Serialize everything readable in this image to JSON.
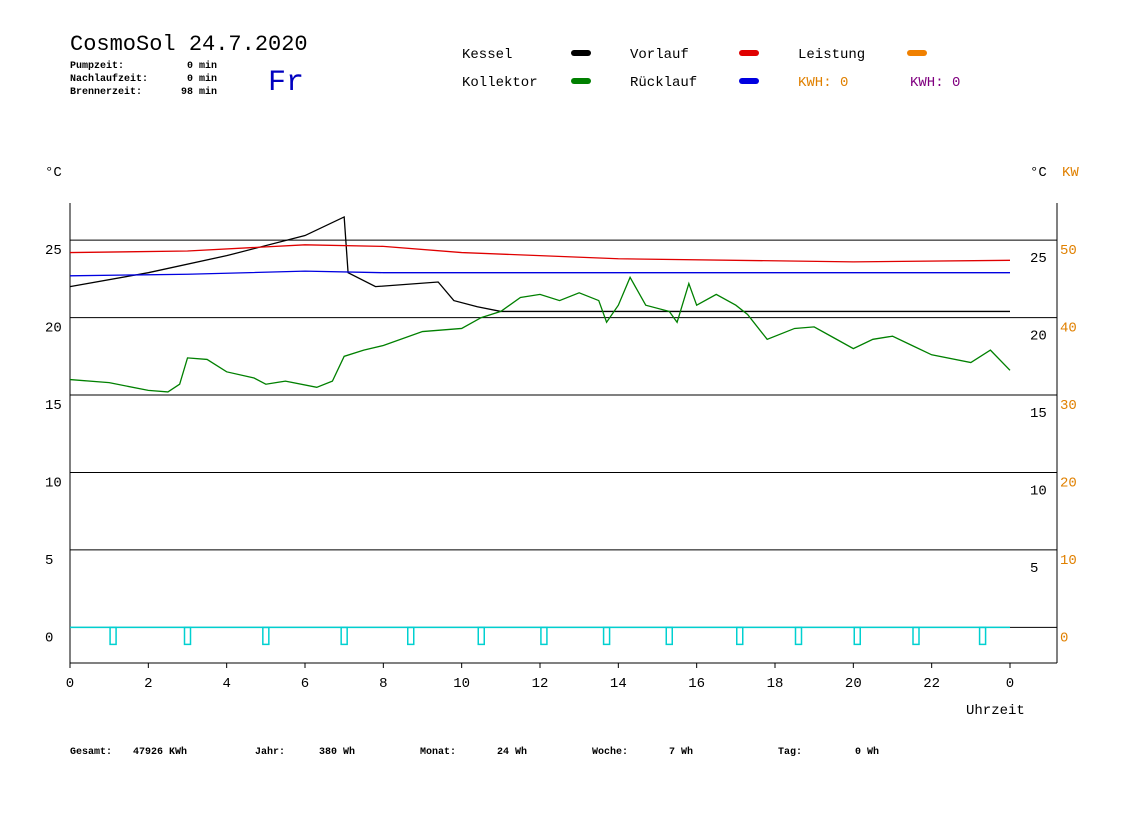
{
  "header": {
    "title": "CosmoSol 24.7.2020",
    "day": "Fr",
    "info": [
      {
        "label": "Pumpzeit:",
        "value": "0 min"
      },
      {
        "label": "Nachlaufzeit:",
        "value": "0 min"
      },
      {
        "label": "Brennerzeit:",
        "value": "98 min"
      }
    ]
  },
  "legend_extra": [
    {
      "text": "KWH: 0",
      "color": "#e08000"
    },
    {
      "text": "KWH: 0",
      "color": "#800080"
    }
  ],
  "footer": [
    {
      "label": "Gesamt:",
      "value": "47926 KWh"
    },
    {
      "label": "Jahr:",
      "value": "380 Wh"
    },
    {
      "label": "Monat:",
      "value": "24 Wh"
    },
    {
      "label": "Woche:",
      "value": "7 Wh"
    },
    {
      "label": "Tag:",
      "value": "0 Wh"
    }
  ],
  "chart_data": {
    "type": "line",
    "ylabel": "°C",
    "y2label_c": "°C",
    "y2label": "KW",
    "xlabel": "Uhrzeit",
    "xlim": [
      0,
      25.2
    ],
    "xticks": [
      0,
      2,
      4,
      6,
      8,
      10,
      12,
      14,
      16,
      18,
      20,
      22,
      {
        "value": 24,
        "label": "0"
      }
    ],
    "ylim": [
      -2.3,
      27.4
    ],
    "yticks": [
      0,
      5,
      10,
      15,
      20,
      25
    ],
    "y3ticks": [
      5,
      10,
      15,
      20,
      25
    ],
    "y2lim": [
      -4.6,
      54.8
    ],
    "y2ticks": [
      0,
      10,
      20,
      30,
      40,
      50
    ],
    "grid": true,
    "series": [
      {
        "name": "Kessel",
        "color": "#000000",
        "x": [
          0,
          2,
          4,
          6,
          7,
          7.1,
          7.8,
          9.4,
          9.8,
          10.4,
          11,
          19.5,
          24
        ],
        "values": [
          22,
          22.9,
          24,
          25.3,
          26.5,
          22.9,
          22,
          22.3,
          21.1,
          20.7,
          20.4,
          20.4,
          20.4
        ]
      },
      {
        "name": "Vorlauf",
        "color": "#e00000",
        "x": [
          0,
          3,
          6,
          8,
          10,
          14,
          20,
          24
        ],
        "values": [
          24.2,
          24.3,
          24.7,
          24.6,
          24.2,
          23.8,
          23.6,
          23.7
        ]
      },
      {
        "name": "Leistung",
        "color": "#f08000",
        "x": [],
        "values": []
      },
      {
        "name": "Kollektor",
        "color": "#008000",
        "x": [
          0,
          1,
          2,
          2.5,
          2.8,
          3,
          3.5,
          4,
          4.7,
          5,
          5.5,
          6.3,
          6.7,
          7,
          7.5,
          8,
          9,
          10,
          10.5,
          11,
          11.5,
          12,
          12.5,
          13,
          13.5,
          13.7,
          14,
          14.3,
          14.7,
          15.3,
          15.5,
          15.8,
          16,
          16.5,
          17,
          17.3,
          17.8,
          18.5,
          19,
          19.5,
          20,
          20.5,
          21,
          21.5,
          22,
          23,
          23.5,
          24
        ],
        "values": [
          16,
          15.8,
          15.3,
          15.2,
          15.7,
          17.4,
          17.3,
          16.5,
          16.1,
          15.7,
          15.9,
          15.5,
          15.9,
          17.5,
          17.9,
          18.2,
          19.1,
          19.3,
          20,
          20.4,
          21.3,
          21.5,
          21.1,
          21.6,
          21.1,
          19.7,
          20.8,
          22.6,
          20.8,
          20.4,
          19.7,
          22.2,
          20.8,
          21.5,
          20.8,
          20.2,
          18.6,
          19.3,
          19.4,
          18.7,
          18,
          18.6,
          18.8,
          18.2,
          17.6,
          17.1,
          17.9,
          16.6
        ]
      },
      {
        "name": "Rücklauf",
        "color": "#0000e0",
        "x": [
          0,
          3,
          6,
          8,
          12,
          24
        ],
        "values": [
          22.7,
          22.8,
          23,
          22.9,
          22.9,
          22.9
        ]
      }
    ],
    "pump": {
      "color": "#00d0d0",
      "base": 0,
      "end": 24,
      "times": [
        1.1,
        3,
        5,
        7,
        8.7,
        10.5,
        12.1,
        13.7,
        15.3,
        17.1,
        18.6,
        20.1,
        21.6,
        23.3
      ]
    }
  }
}
